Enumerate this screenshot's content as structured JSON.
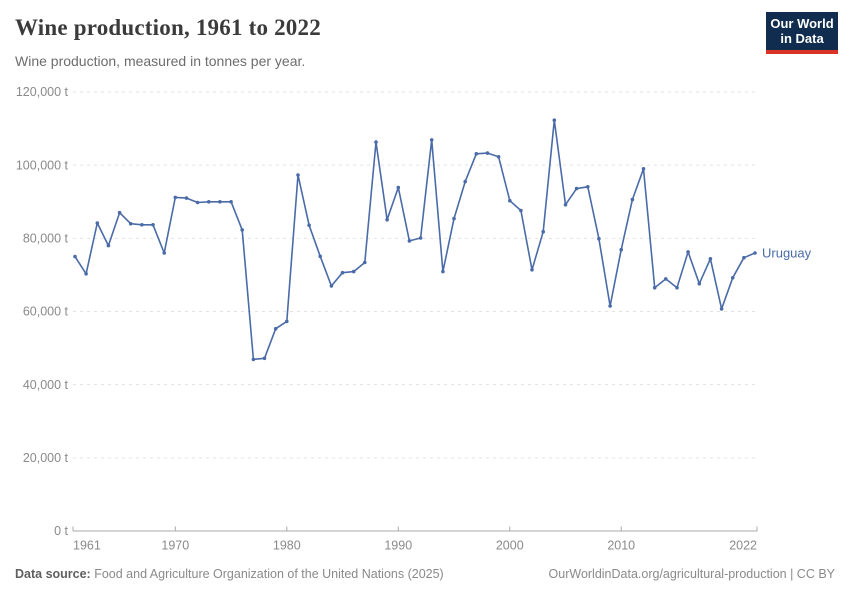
{
  "header": {
    "title": "Wine production, 1961 to 2022",
    "subtitle": "Wine production, measured in tonnes per year.",
    "logo_line1": "Our World",
    "logo_line2": "in Data"
  },
  "footer": {
    "source_label": "Data source:",
    "source_text": " Food and Agriculture Organization of the United Nations (2025)",
    "link_text": "OurWorldinData.org/agricultural-production | CC BY"
  },
  "colors": {
    "line": "#4a6ba8",
    "grid": "#e2e2e2",
    "axis": "#a8a8a8",
    "tick_label": "#8a8a8a",
    "title": "#3b3b3b",
    "subtitle": "#6d6d6d",
    "logo_bg": "#102d4f",
    "logo_red": "#d93328"
  },
  "chart_data": {
    "type": "line",
    "title": "Wine production, 1961 to 2022",
    "xlabel": "",
    "ylabel": "tonnes per year",
    "grid": "horizontal-dashed",
    "legend_position": "end-of-line-label",
    "entity_label": "Uruguay",
    "ylim": [
      0,
      120000
    ],
    "y_ticks": [
      0,
      20000,
      40000,
      60000,
      80000,
      100000,
      120000
    ],
    "y_tick_suffix": " t",
    "x_ticks": [
      1961,
      1970,
      1980,
      1990,
      2000,
      2010,
      2022
    ],
    "years": [
      1961,
      1962,
      1963,
      1964,
      1965,
      1966,
      1967,
      1968,
      1969,
      1970,
      1971,
      1972,
      1973,
      1974,
      1975,
      1976,
      1977,
      1978,
      1979,
      1980,
      1981,
      1982,
      1983,
      1984,
      1985,
      1986,
      1987,
      1988,
      1989,
      1990,
      1991,
      1992,
      1993,
      1994,
      1995,
      1996,
      1997,
      1998,
      1999,
      2000,
      2001,
      2002,
      2003,
      2004,
      2005,
      2006,
      2007,
      2008,
      2009,
      2010,
      2011,
      2012,
      2013,
      2014,
      2015,
      2016,
      2017,
      2018,
      2019,
      2020,
      2021,
      2022
    ],
    "series": [
      {
        "name": "Uruguay",
        "values": [
          75000,
          70300,
          84200,
          78000,
          87000,
          84000,
          83700,
          83700,
          76000,
          91200,
          91000,
          89800,
          90000,
          90000,
          90000,
          82300,
          46900,
          47200,
          55300,
          57300,
          97300,
          83600,
          75100,
          67000,
          70600,
          70900,
          73400,
          106300,
          85100,
          93900,
          79300,
          80100,
          106900,
          70900,
          85400,
          95500,
          103100,
          103300,
          102300,
          90300,
          87600,
          71400,
          81800,
          112300,
          89200,
          93600,
          94100,
          79900,
          61500,
          76900,
          90600,
          99000,
          66500,
          68900,
          66500,
          76300,
          67600,
          74400,
          60700,
          69200,
          74700,
          76000
        ]
      }
    ]
  }
}
